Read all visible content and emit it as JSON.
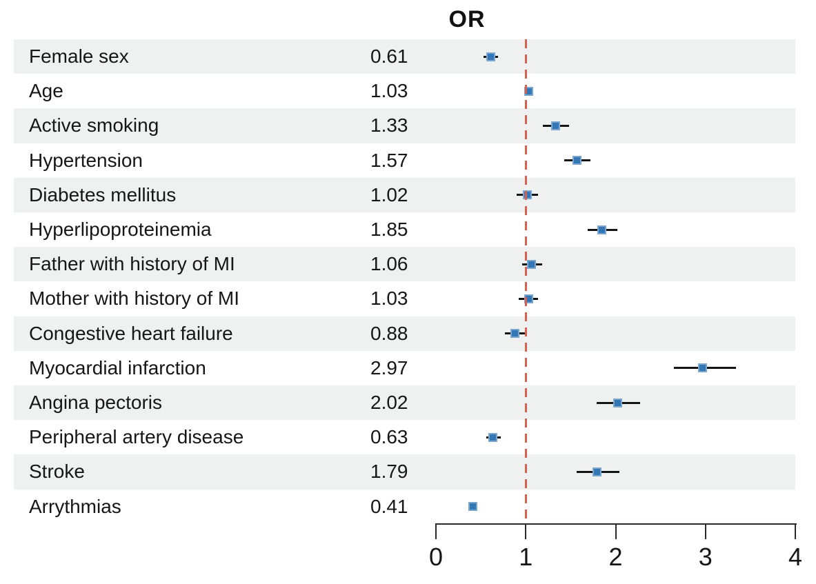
{
  "chart_data": {
    "type": "scatter",
    "subtype": "forest-plot",
    "title": "OR",
    "xlabel": "",
    "xlim": [
      0,
      4
    ],
    "xticks": [
      0,
      1,
      2,
      3,
      4
    ],
    "reference_line": 1,
    "grid": false,
    "legend": "none",
    "rows": [
      {
        "label": "Female sex",
        "or": 0.61,
        "or_text": "0.61",
        "ci_low": 0.53,
        "ci_high": 0.69
      },
      {
        "label": "Age",
        "or": 1.03,
        "or_text": "1.03",
        "ci_low": 0.99,
        "ci_high": 1.07
      },
      {
        "label": "Active smoking",
        "or": 1.33,
        "or_text": "1.33",
        "ci_low": 1.19,
        "ci_high": 1.48
      },
      {
        "label": "Hypertension",
        "or": 1.57,
        "or_text": "1.57",
        "ci_low": 1.43,
        "ci_high": 1.72
      },
      {
        "label": "Diabetes mellitus",
        "or": 1.02,
        "or_text": "1.02",
        "ci_low": 0.9,
        "ci_high": 1.14
      },
      {
        "label": "Hyperlipoproteinemia",
        "or": 1.85,
        "or_text": "1.85",
        "ci_low": 1.69,
        "ci_high": 2.02
      },
      {
        "label": "Father with history of MI",
        "or": 1.06,
        "or_text": "1.06",
        "ci_low": 0.96,
        "ci_high": 1.18
      },
      {
        "label": "Mother with history of MI",
        "or": 1.03,
        "or_text": "1.03",
        "ci_low": 0.92,
        "ci_high": 1.14
      },
      {
        "label": "Congestive heart failure",
        "or": 0.88,
        "or_text": "0.88",
        "ci_low": 0.77,
        "ci_high": 1.0
      },
      {
        "label": "Myocardial infarction",
        "or": 2.97,
        "or_text": "2.97",
        "ci_low": 2.65,
        "ci_high": 3.34
      },
      {
        "label": "Angina pectoris",
        "or": 2.02,
        "or_text": "2.02",
        "ci_low": 1.79,
        "ci_high": 2.27
      },
      {
        "label": "Peripheral artery disease",
        "or": 0.63,
        "or_text": "0.63",
        "ci_low": 0.56,
        "ci_high": 0.72
      },
      {
        "label": "Stroke",
        "or": 1.79,
        "or_text": "1.79",
        "ci_low": 1.57,
        "ci_high": 2.04
      },
      {
        "label": "Arrythmias",
        "or": 0.41,
        "or_text": "0.41",
        "ci_low": 0.36,
        "ci_high": 0.46
      }
    ],
    "colors": {
      "marker_fill": "#3377b4",
      "marker_edge": "#7aa6d0",
      "ci_line": "#141414",
      "reference_line": "#d9604e",
      "row_stripe": "#eef1f0",
      "axis": "#2a2a2a",
      "text": "#161616"
    }
  }
}
